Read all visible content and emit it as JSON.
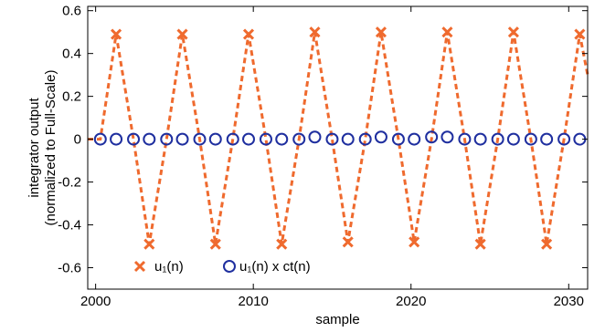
{
  "chart_data": {
    "type": "line",
    "xlabel": "sample",
    "ylabel_line1": "integrator output",
    "ylabel_line2": "(normalized to Full-Scale)",
    "xlim": [
      1999.5,
      2031.2
    ],
    "ylim": [
      -0.7,
      0.62
    ],
    "grid": false,
    "legend_position": "bottom-center",
    "x_ticks": [
      2000,
      2010,
      2020,
      2030
    ],
    "x_tick_labels": [
      "2000",
      "2010",
      "2020",
      "2030"
    ],
    "y_ticks": [
      0.6,
      0.4,
      0.2,
      0,
      -0.2,
      -0.4,
      -0.6
    ],
    "y_tick_labels": [
      "0.6",
      "0.4",
      "0.2",
      "0",
      "-0.2",
      "-0.4",
      "-0.6"
    ],
    "series": [
      {
        "name": "u₁(n)",
        "marker": "x",
        "line": "dashed",
        "color": "#ef6a2e",
        "x": [
          2000.3,
          2001.3,
          2002.4,
          2003.4,
          2004.5,
          2005.5,
          2006.6,
          2007.6,
          2008.7,
          2009.7,
          2010.8,
          2011.8,
          2012.9,
          2013.9,
          2015.0,
          2016.0,
          2017.1,
          2018.1,
          2019.2,
          2020.2,
          2021.3,
          2022.3,
          2023.4,
          2024.4,
          2025.5,
          2026.5,
          2027.6,
          2028.6,
          2029.7,
          2030.7
        ],
        "y": [
          0.0,
          0.49,
          0.0,
          -0.49,
          0.0,
          0.49,
          0.0,
          -0.49,
          0.0,
          0.49,
          0.0,
          -0.49,
          0.0,
          0.5,
          0.0,
          -0.48,
          0.0,
          0.5,
          0.0,
          -0.48,
          0.0,
          0.5,
          0.0,
          -0.49,
          0.0,
          0.5,
          0.0,
          -0.49,
          0.0,
          0.49
        ]
      },
      {
        "name": "u₁(n) x ct(n)",
        "marker": "o",
        "line": "none",
        "color": "#1f2f9f",
        "x": [
          2000.3,
          2001.3,
          2002.4,
          2003.4,
          2004.5,
          2005.5,
          2006.6,
          2007.6,
          2008.7,
          2009.7,
          2010.8,
          2011.8,
          2012.9,
          2013.9,
          2015.0,
          2016.0,
          2017.1,
          2018.1,
          2019.2,
          2020.2,
          2021.3,
          2022.3,
          2023.4,
          2024.4,
          2025.5,
          2026.5,
          2027.6,
          2028.6,
          2029.7,
          2030.7
        ],
        "y": [
          0.0,
          0.0,
          0.0,
          0.0,
          0.0,
          0.0,
          0.0,
          0.0,
          0.0,
          0.0,
          0.0,
          0.0,
          0.0,
          0.01,
          0.0,
          0.0,
          0.0,
          0.01,
          0.0,
          0.0,
          0.01,
          0.01,
          0.0,
          0.0,
          0.0,
          0.0,
          0.0,
          0.0,
          0.0,
          0.0
        ]
      }
    ]
  }
}
